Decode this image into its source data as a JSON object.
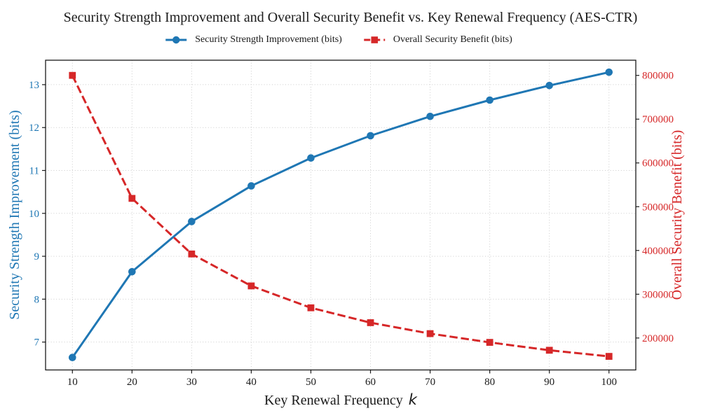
{
  "title": "Security Strength Improvement and Overall Security Benefit vs. Key Renewal Frequency (AES-CTR)",
  "legend": [
    {
      "label": "Security Strength Improvement (bits)",
      "color": "#1f77b4",
      "marker": "circle",
      "linestyle": "solid"
    },
    {
      "label": "Overall Security Benefit (bits)",
      "color": "#d62728",
      "marker": "square",
      "linestyle": "dashed"
    }
  ],
  "chart_data": {
    "type": "line",
    "title": "Security Strength Improvement and Overall Security Benefit vs. Key Renewal Frequency (AES-CTR)",
    "xlabel": "Key Renewal Frequency ",
    "xlabel_math": "k",
    "x": [
      10,
      20,
      30,
      40,
      50,
      60,
      70,
      80,
      90,
      100
    ],
    "x_ticks": [
      10,
      20,
      30,
      40,
      50,
      60,
      70,
      80,
      90,
      100
    ],
    "xlim": [
      5.5,
      104.5
    ],
    "grid": true,
    "legend_position": "top center",
    "series": [
      {
        "name": "Security Strength Improvement (bits)",
        "axis": "left",
        "color": "#1f77b4",
        "marker": "circle",
        "linestyle": "solid",
        "values": [
          6.64,
          8.64,
          9.81,
          10.64,
          11.29,
          11.81,
          12.26,
          12.64,
          12.98,
          13.29
        ]
      },
      {
        "name": "Overall Security Benefit (bits)",
        "axis": "right",
        "color": "#d62728",
        "marker": "square",
        "linestyle": "dashed",
        "values": [
          800000,
          519000,
          392000,
          319000,
          269000,
          235000,
          210000,
          190000,
          172000,
          158000
        ]
      }
    ],
    "left_axis": {
      "label": "Security Strength Improvement (bits)",
      "color": "#1f77b4",
      "ticks": [
        7,
        8,
        9,
        10,
        11,
        12,
        13
      ],
      "ylim": [
        6.35,
        13.57
      ]
    },
    "right_axis": {
      "label": "Overall Security Benefit (bits)",
      "color": "#d62728",
      "ticks": [
        200000,
        300000,
        400000,
        500000,
        600000,
        700000,
        800000
      ],
      "ylim": [
        127000,
        834700
      ]
    }
  },
  "colors": {
    "strength": "#1f77b4",
    "benefit": "#d62728",
    "grid": "#cccccc",
    "spine": "#1a1a1a",
    "text": "#1a1a1a"
  }
}
